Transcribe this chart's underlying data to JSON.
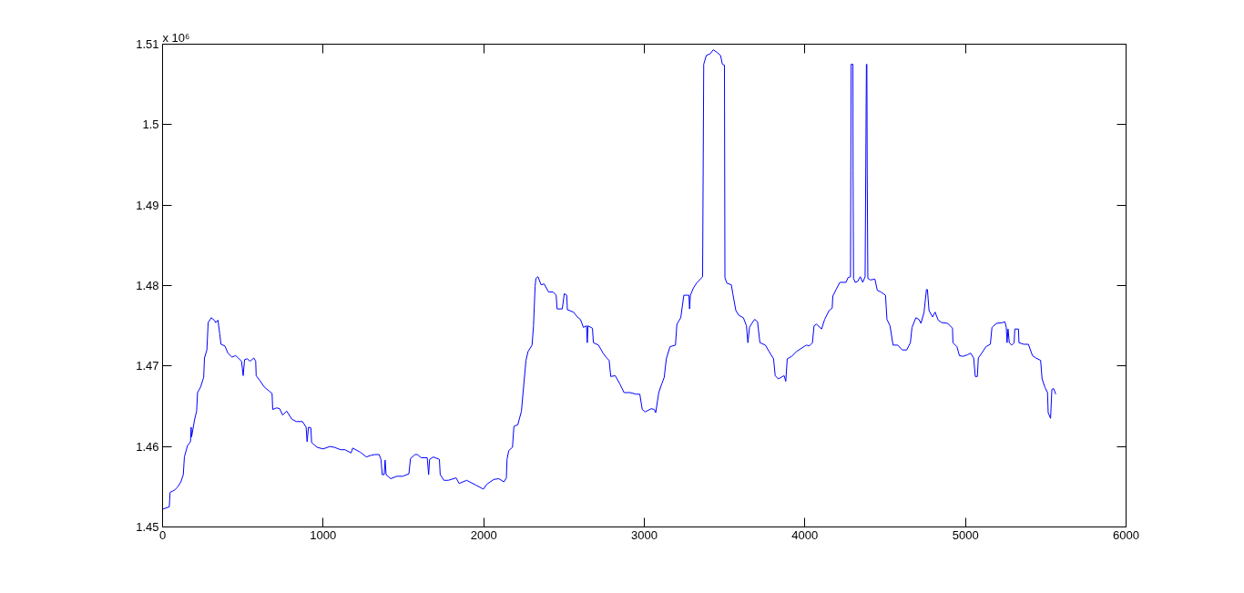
{
  "chart_data": {
    "type": "line",
    "annotations": [
      "x 10⁶"
    ],
    "xlim": [
      0,
      6000
    ],
    "xticks": [
      0,
      1000,
      2000,
      3000,
      4000,
      5000,
      6000
    ],
    "ylim": [
      1.45,
      1.51
    ],
    "yticks": [
      1.45,
      1.46,
      1.47,
      1.48,
      1.49,
      1.5,
      1.51
    ],
    "x": [
      0,
      42,
      47,
      76,
      95,
      114,
      129,
      136,
      155,
      174,
      178,
      181,
      199,
      212,
      218,
      237,
      256,
      261,
      276,
      284,
      303,
      322,
      331,
      345,
      356,
      364,
      388,
      407,
      432,
      455,
      492,
      502,
      511,
      527,
      546,
      568,
      580,
      583,
      606,
      633,
      663,
      682,
      686,
      710,
      729,
      748,
      773,
      805,
      833,
      871,
      894,
      900,
      909,
      924,
      928,
      962,
      1000,
      1042,
      1070,
      1108,
      1136,
      1174,
      1184,
      1231,
      1269,
      1297,
      1322,
      1349,
      1360,
      1368,
      1380,
      1386,
      1392,
      1421,
      1458,
      1496,
      1534,
      1544,
      1572,
      1587,
      1610,
      1648,
      1657,
      1663,
      1686,
      1724,
      1729,
      1752,
      1780,
      1828,
      1847,
      1894,
      1951,
      1998,
      2019,
      2062,
      2094,
      2126,
      2141,
      2145,
      2156,
      2179,
      2188,
      2212,
      2235,
      2245,
      2263,
      2276,
      2301,
      2310,
      2320,
      2325,
      2338,
      2357,
      2376,
      2404,
      2432,
      2451,
      2457,
      2489,
      2502,
      2517,
      2521,
      2559,
      2583,
      2602,
      2621,
      2640,
      2645,
      2649,
      2677,
      2683,
      2715,
      2743,
      2762,
      2781,
      2791,
      2819,
      2847,
      2874,
      2912,
      2949,
      2972,
      2987,
      3006,
      3043,
      3062,
      3071,
      3090,
      3109,
      3124,
      3137,
      3160,
      3194,
      3203,
      3227,
      3246,
      3278,
      3282,
      3287,
      3306,
      3325,
      3363,
      3370,
      3386,
      3410,
      3429,
      3452,
      3475,
      3486,
      3499,
      3502,
      3514,
      3542,
      3551,
      3570,
      3589,
      3617,
      3636,
      3645,
      3655,
      3673,
      3687,
      3705,
      3720,
      3754,
      3777,
      3805,
      3815,
      3834,
      3871,
      3881,
      3890,
      3918,
      3947,
      4009,
      4028,
      4047,
      4057,
      4072,
      4104,
      4123,
      4151,
      4170,
      4174,
      4199,
      4218,
      4256,
      4269,
      4284,
      4288,
      4299,
      4300,
      4303,
      4313,
      4328,
      4345,
      4360,
      4375,
      4383,
      4386,
      4388,
      4392,
      4407,
      4436,
      4451,
      4474,
      4502,
      4511,
      4530,
      4549,
      4578,
      4606,
      4634,
      4657,
      4667,
      4691,
      4710,
      4723,
      4742,
      4757,
      4763,
      4773,
      4795,
      4811,
      4830,
      4852,
      4890,
      4919,
      4922,
      4947,
      4962,
      4985,
      5013,
      5032,
      5051,
      5061,
      5074,
      5080,
      5108,
      5127,
      5155,
      5165,
      5193,
      5231,
      5246,
      5254,
      5259,
      5265,
      5273,
      5288,
      5303,
      5307,
      5330,
      5333,
      5364,
      5392,
      5417,
      5439,
      5468,
      5477,
      5496,
      5511,
      5515,
      5530,
      5538,
      5549,
      5562
    ],
    "series": [
      {
        "color": "#0000ff",
        "values": [
          1.4522,
          1.4525,
          1.4543,
          1.4546,
          1.455,
          1.4556,
          1.4565,
          1.4587,
          1.4601,
          1.4606,
          1.4624,
          1.4612,
          1.4633,
          1.4644,
          1.4667,
          1.4674,
          1.4686,
          1.471,
          1.472,
          1.4754,
          1.476,
          1.4757,
          1.4754,
          1.4757,
          1.474,
          1.4727,
          1.4725,
          1.4716,
          1.4711,
          1.4713,
          1.4706,
          1.4688,
          1.4708,
          1.4709,
          1.4706,
          1.471,
          1.4706,
          1.4688,
          1.4682,
          1.4674,
          1.4669,
          1.4666,
          1.4646,
          1.4648,
          1.4647,
          1.4639,
          1.4644,
          1.4634,
          1.4631,
          1.4631,
          1.4624,
          1.4606,
          1.4624,
          1.4623,
          1.4605,
          1.4599,
          1.4597,
          1.46,
          1.4599,
          1.4596,
          1.4596,
          1.4592,
          1.4598,
          1.4593,
          1.4587,
          1.4589,
          1.459,
          1.459,
          1.4584,
          1.4565,
          1.4565,
          1.4583,
          1.4565,
          1.456,
          1.4563,
          1.4563,
          1.4566,
          1.4585,
          1.459,
          1.459,
          1.4586,
          1.4586,
          1.4565,
          1.4584,
          1.4587,
          1.4584,
          1.4565,
          1.4558,
          1.4558,
          1.4561,
          1.4554,
          1.4558,
          1.4552,
          1.4547,
          1.4553,
          1.4559,
          1.456,
          1.4556,
          1.4561,
          1.4584,
          1.4595,
          1.4599,
          1.4625,
          1.4627,
          1.4644,
          1.4667,
          1.4707,
          1.4718,
          1.4726,
          1.475,
          1.4799,
          1.4809,
          1.4811,
          1.4801,
          1.4802,
          1.4792,
          1.4792,
          1.4788,
          1.4771,
          1.4771,
          1.479,
          1.4788,
          1.477,
          1.4767,
          1.4761,
          1.4758,
          1.4748,
          1.475,
          1.4729,
          1.475,
          1.4747,
          1.4729,
          1.4726,
          1.4716,
          1.4711,
          1.4707,
          1.4687,
          1.4688,
          1.4678,
          1.4667,
          1.4667,
          1.4665,
          1.4665,
          1.4646,
          1.4643,
          1.4647,
          1.4646,
          1.4642,
          1.4667,
          1.4678,
          1.4686,
          1.4709,
          1.4724,
          1.4726,
          1.4752,
          1.476,
          1.4788,
          1.4788,
          1.4771,
          1.4788,
          1.4797,
          1.4803,
          1.4811,
          1.5075,
          1.5086,
          1.5088,
          1.5093,
          1.509,
          1.5086,
          1.5075,
          1.5074,
          1.481,
          1.4803,
          1.4801,
          1.479,
          1.4769,
          1.4763,
          1.476,
          1.475,
          1.4729,
          1.4748,
          1.4754,
          1.4758,
          1.4755,
          1.4729,
          1.4726,
          1.4718,
          1.4709,
          1.4688,
          1.4684,
          1.4688,
          1.4681,
          1.4709,
          1.4712,
          1.4718,
          1.4726,
          1.4725,
          1.4729,
          1.475,
          1.4752,
          1.4746,
          1.4758,
          1.4769,
          1.4772,
          1.4787,
          1.4797,
          1.4804,
          1.4804,
          1.481,
          1.4811,
          1.5075,
          1.5075,
          1.4943,
          1.4809,
          1.4804,
          1.4805,
          1.4811,
          1.4804,
          1.4811,
          1.5075,
          1.5075,
          1.4941,
          1.4809,
          1.4807,
          1.4808,
          1.4794,
          1.4792,
          1.4788,
          1.4758,
          1.475,
          1.4726,
          1.4726,
          1.472,
          1.472,
          1.4729,
          1.4748,
          1.476,
          1.4758,
          1.4753,
          1.4767,
          1.4795,
          1.4795,
          1.4769,
          1.4761,
          1.4767,
          1.4757,
          1.4754,
          1.4753,
          1.4747,
          1.4729,
          1.4724,
          1.4713,
          1.4712,
          1.4714,
          1.4716,
          1.471,
          1.4687,
          1.4687,
          1.471,
          1.4718,
          1.4724,
          1.4727,
          1.4748,
          1.4753,
          1.4754,
          1.4755,
          1.4748,
          1.4729,
          1.4746,
          1.4729,
          1.4726,
          1.4729,
          1.4746,
          1.4746,
          1.4729,
          1.4727,
          1.4727,
          1.4713,
          1.471,
          1.4707,
          1.4684,
          1.4673,
          1.4667,
          1.4642,
          1.4635,
          1.4671,
          1.4672,
          1.4665
        ]
      }
    ]
  }
}
